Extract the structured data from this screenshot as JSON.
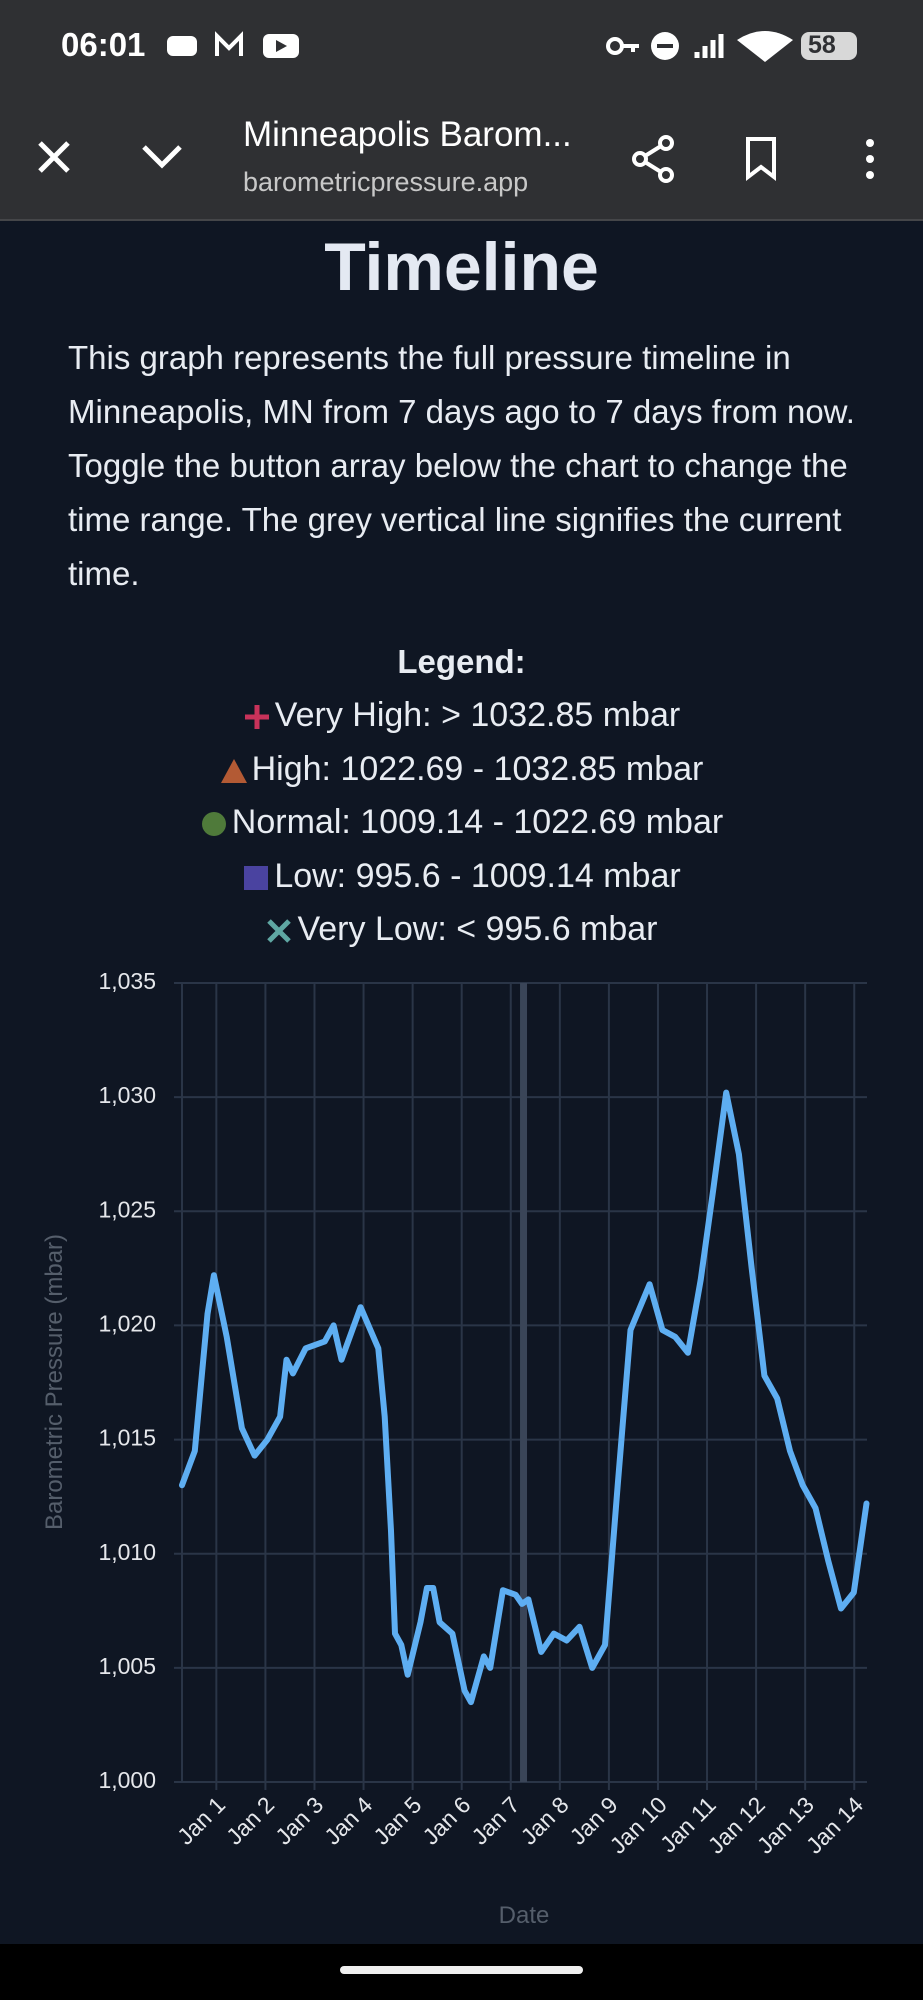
{
  "status_bar": {
    "time": "06:01",
    "battery": "58"
  },
  "browser_bar": {
    "title": "Minneapolis Barom...",
    "url": "barometricpressure.app"
  },
  "content": {
    "heading": "Timeline",
    "paragraph": "This graph represents the full pressure timeline in Minneapolis, MN from 7 days ago to 7 days from now. Toggle the button array below the chart to change the time range. The grey vertical line signifies the current time.",
    "legend_title": "Legend:",
    "legend_items": [
      "Very High: > 1032.85 mbar",
      "High: 1022.69 - 1032.85 mbar",
      "Normal: 1009.14 - 1022.69 mbar",
      "Low: 995.6 - 1009.14 mbar",
      "Very Low: < 995.6 mbar"
    ]
  },
  "chart_data": {
    "type": "line",
    "x_label": "Date",
    "y_label": "Barometric Pressure (mbar)",
    "x": [
      0.3,
      0.56,
      0.82,
      0.95,
      1.21,
      1.52,
      1.78,
      2.04,
      2.3,
      2.43,
      2.56,
      2.82,
      3.21,
      3.39,
      3.55,
      3.94,
      4.3,
      4.43,
      4.56,
      4.64,
      4.77,
      4.9,
      5.16,
      5.29,
      5.42,
      5.55,
      5.81,
      6.06,
      6.19,
      6.45,
      6.58,
      6.84,
      7.1,
      7.23,
      7.36,
      7.62,
      7.88,
      8.14,
      8.4,
      8.66,
      8.92,
      9.18,
      9.44,
      9.83,
      10.09,
      10.35,
      10.61,
      10.87,
      11.13,
      11.39,
      11.65,
      11.91,
      12.17,
      12.43,
      12.69,
      12.95,
      13.21,
      13.47,
      13.73,
      13.99,
      14.25
    ],
    "values": [
      1013,
      1014.5,
      1020.5,
      1022.2,
      1019.5,
      1015.5,
      1014.3,
      1015,
      1016,
      1018.5,
      1017.9,
      1019,
      1019.3,
      1020,
      1018.5,
      1020.8,
      1019,
      1016,
      1011,
      1006.5,
      1006,
      1004.7,
      1007,
      1008.5,
      1008.5,
      1007,
      1006.5,
      1004,
      1003.5,
      1005.5,
      1005,
      1008.4,
      1008.2,
      1007.8,
      1008,
      1005.7,
      1006.5,
      1006.2,
      1006.8,
      1005,
      1006,
      1013,
      1019.8,
      1021.8,
      1019.8,
      1019.5,
      1018.8,
      1022,
      1026,
      1030.2,
      1027.5,
      1022.5,
      1017.8,
      1016.8,
      1014.5,
      1013,
      1012,
      1009.7,
      1007.6,
      1008.3,
      1012.2
    ],
    "color": "#5eaef2",
    "current_time": 7.26,
    "xlim": [
      0.3,
      14.26
    ],
    "xticks": [
      {
        "value": 1,
        "label": "Jan 1"
      },
      {
        "value": 2,
        "label": "Jan 2"
      },
      {
        "value": 3,
        "label": "Jan 3"
      },
      {
        "value": 4,
        "label": "Jan 4"
      },
      {
        "value": 5,
        "label": "Jan 5"
      },
      {
        "value": 6,
        "label": "Jan 6"
      },
      {
        "value": 7,
        "label": "Jan 7"
      },
      {
        "value": 8,
        "label": "Jan 8"
      },
      {
        "value": 9,
        "label": "Jan 9"
      },
      {
        "value": 10,
        "label": "Jan 10"
      },
      {
        "value": 11,
        "label": "Jan 11"
      },
      {
        "value": 12,
        "label": "Jan 12"
      },
      {
        "value": 13,
        "label": "Jan 13"
      },
      {
        "value": 14,
        "label": "Jan 14"
      }
    ],
    "ylim": [
      1000,
      1035
    ],
    "yticks": [
      {
        "value": 1000,
        "label": "1,000"
      },
      {
        "value": 1005,
        "label": "1,005"
      },
      {
        "value": 1010,
        "label": "1,010"
      },
      {
        "value": 1015,
        "label": "1,015"
      },
      {
        "value": 1020,
        "label": "1,020"
      },
      {
        "value": 1025,
        "label": "1,025"
      },
      {
        "value": 1030,
        "label": "1,030"
      },
      {
        "value": 1035,
        "label": "1,035"
      }
    ],
    "grid": true
  }
}
